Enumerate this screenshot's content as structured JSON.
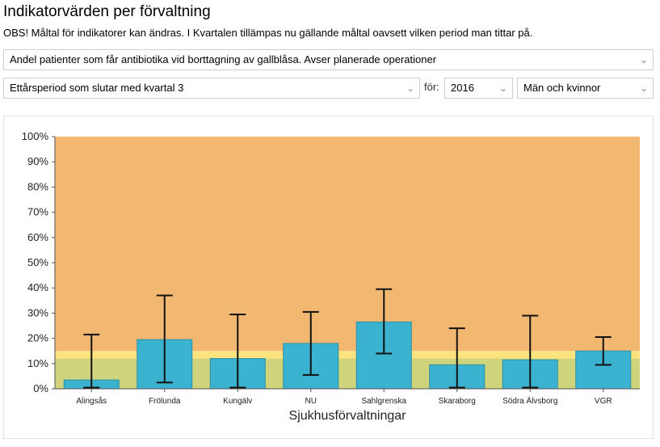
{
  "header": {
    "title": "Indikatorvärden per förvaltning",
    "notice": "OBS! Måltal för indikatorer kan ändras. I Kvartalen tillämpas nu gällande måltal oavsett vilken period man tittar på."
  },
  "filters": {
    "indicator": "Andel patienter som får antibiotika vid borttagning av gallblåsa. Avser planerade operationer",
    "period": "Ettårsperiod som slutar med kvartal 3",
    "for_label": "för:",
    "year": "2016",
    "gender": "Män och kvinnor",
    "chevron_icon": "chevron-down-icon"
  },
  "colors": {
    "bar": "#3bb2d0",
    "bar_stroke": "#2a90a8",
    "target_high": "#f2b872",
    "target_mid": "#fbe37d",
    "target_low": "#cfd37c",
    "error": "#111111"
  },
  "chart_data": {
    "type": "bar",
    "xlabel": "Sjukhusförvaltningar",
    "ylabel": "",
    "ylim": [
      0,
      100
    ],
    "yticks": [
      0,
      10,
      20,
      30,
      40,
      50,
      60,
      70,
      80,
      90,
      100
    ],
    "ytick_labels": [
      "0%",
      "10%",
      "20%",
      "30%",
      "40%",
      "50%",
      "60%",
      "70%",
      "80%",
      "90%",
      "100%"
    ],
    "categories": [
      "Alingsås",
      "Frölunda",
      "Kungälv",
      "NU",
      "Sahlgrenska",
      "Skaraborg",
      "Södra Älvsborg",
      "VGR"
    ],
    "values": [
      3.5,
      19.5,
      12,
      18,
      26.5,
      9.5,
      11.5,
      15
    ],
    "error_low": [
      0.5,
      2.5,
      0.5,
      5.5,
      14,
      0.5,
      0.5,
      9.5
    ],
    "error_high": [
      21.5,
      37,
      29.5,
      30.5,
      39.5,
      24,
      29,
      20.5
    ],
    "target_bands": [
      {
        "from": 0,
        "to": 12,
        "color_key": "target_low"
      },
      {
        "from": 12,
        "to": 15,
        "color_key": "target_mid"
      },
      {
        "from": 15,
        "to": 100,
        "color_key": "target_high"
      }
    ]
  }
}
